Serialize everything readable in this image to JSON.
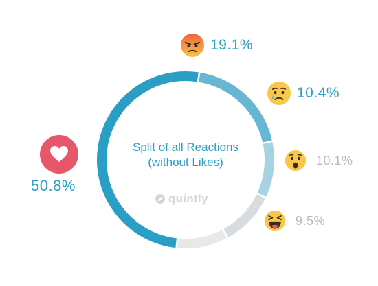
{
  "chart_data": {
    "type": "pie",
    "style": "donut",
    "title": "Split of all Reactions (without Likes)",
    "title_lines": [
      "Split of all Reactions",
      "(without Likes)"
    ],
    "slices": [
      {
        "icon": "heart-icon",
        "label": "50.8%",
        "value": 50.8,
        "color": "#2a9ec4",
        "label_color": "#2a9ec4"
      },
      {
        "icon": "angry-face-icon",
        "label": "19.1%",
        "value": 19.1,
        "color": "#67b6d3",
        "label_color": "#2a9ec4"
      },
      {
        "icon": "sad-face-icon",
        "label": "10.4%",
        "value": 10.4,
        "color": "#a6d2e4",
        "label_color": "#2a9ec4"
      },
      {
        "icon": "wow-face-icon",
        "label": "10.1%",
        "value": 10.1,
        "color": "#d7dcdf",
        "label_color": "#b9bcbf"
      },
      {
        "icon": "haha-face-icon",
        "label": "9.5%",
        "value": 9.5,
        "color": "#e8e8e8",
        "label_color": "#b9bcbf"
      }
    ]
  },
  "watermark": "quintly"
}
